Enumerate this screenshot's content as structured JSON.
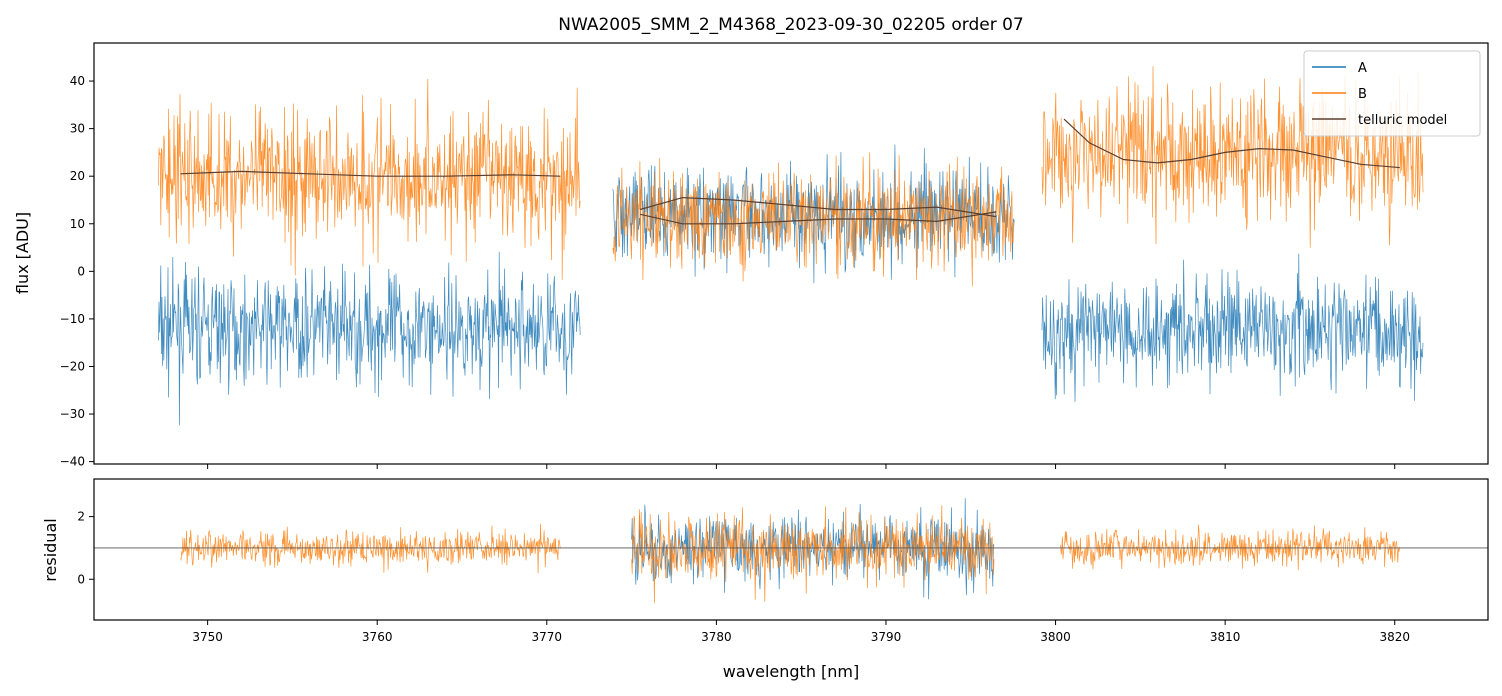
{
  "chart_data": [
    {
      "type": "line",
      "panel": "main",
      "title": "NWA2005_SMM_2_M4368_2023-09-30_02205  order 07",
      "xlabel": "",
      "ylabel": "flux [ADU]",
      "xlim": [
        3743.3,
        3825.5
      ],
      "ylim": [
        -40.5,
        48
      ],
      "yticks": [
        -40,
        -30,
        -20,
        -10,
        0,
        10,
        20,
        30,
        40
      ],
      "grid": false,
      "legend_position": "top-right",
      "colors": {
        "A": "#1f77b4",
        "B": "#ff7f0e",
        "model": "#5a4030"
      },
      "segments": [
        {
          "x_range": [
            3747.1,
            3772.0
          ],
          "A": {
            "mean": -12,
            "noise_sd": 8
          },
          "B": {
            "mean": 20,
            "noise_sd": 10
          },
          "model_x": [
            3748.4,
            3752,
            3756,
            3760,
            3764,
            3768,
            3770.8
          ],
          "model_y": [
            20.5,
            21.0,
            20.5,
            20.0,
            20.0,
            20.3,
            20.0
          ]
        },
        {
          "x_range": [
            3773.9,
            3797.6
          ],
          "A": {
            "mean": 12,
            "noise_sd": 7
          },
          "B": {
            "mean": 11,
            "noise_sd": 7
          },
          "model_x": [
            3775.5,
            3778,
            3781,
            3784,
            3787,
            3790,
            3793,
            3796.5
          ],
          "model_y": [
            13,
            15.5,
            15,
            14,
            13,
            13,
            13.5,
            11.5
          ],
          "model2_x": [
            3775.5,
            3778,
            3781,
            3784,
            3787,
            3790,
            3793,
            3796.5
          ],
          "model2_y": [
            12,
            10,
            10,
            10.5,
            11,
            11,
            10.5,
            12.5
          ]
        },
        {
          "x_range": [
            3799.2,
            3821.7
          ],
          "A": {
            "mean": -12,
            "noise_sd": 8
          },
          "B": {
            "mean": 25,
            "noise_sd": 10
          },
          "model_x": [
            3800.5,
            3802,
            3804,
            3806,
            3808,
            3810,
            3812,
            3814,
            3816,
            3818,
            3820.3
          ],
          "model_y": [
            32,
            27,
            23.5,
            22.8,
            23.5,
            25,
            25.8,
            25.5,
            24,
            22.5,
            21.8
          ]
        }
      ]
    },
    {
      "type": "line",
      "panel": "residual",
      "xlabel": "wavelength [nm]",
      "ylabel": "residual",
      "xlim": [
        3743.3,
        3825.5
      ],
      "ylim": [
        -1.3,
        3.2
      ],
      "yticks": [
        0,
        2
      ],
      "xticks": [
        3750,
        3760,
        3770,
        3780,
        3790,
        3800,
        3810,
        3820
      ],
      "reference_line": 1,
      "segments": [
        {
          "x_range": [
            3748.4,
            3770.8
          ],
          "A": null,
          "B": {
            "mean": 1,
            "noise_sd": 0.4
          }
        },
        {
          "x_range": [
            3775.0,
            3796.4
          ],
          "A": {
            "mean": 1,
            "noise_sd": 0.75
          },
          "B": {
            "mean": 1,
            "noise_sd": 0.75
          }
        },
        {
          "x_range": [
            3800.3,
            3820.3
          ],
          "A": null,
          "B": {
            "mean": 1,
            "noise_sd": 0.4
          }
        }
      ]
    }
  ],
  "legend": {
    "items": [
      {
        "label": "A",
        "color": "#1f77b4"
      },
      {
        "label": "B",
        "color": "#ff7f0e"
      },
      {
        "label": "telluric model",
        "color": "#5a4030"
      }
    ]
  }
}
